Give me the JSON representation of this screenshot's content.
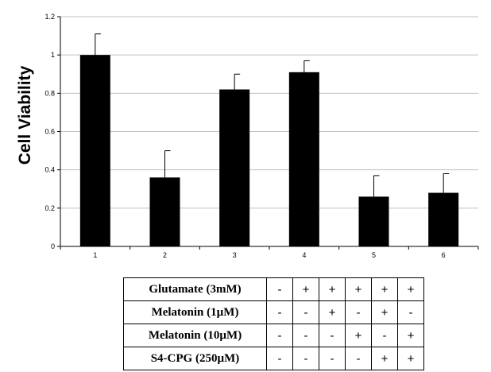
{
  "chart_data": {
    "type": "bar",
    "categories": [
      "1",
      "2",
      "3",
      "4",
      "5",
      "6"
    ],
    "values": [
      1.0,
      0.36,
      0.82,
      0.91,
      0.26,
      0.28
    ],
    "errors": [
      0.11,
      0.14,
      0.08,
      0.06,
      0.11,
      0.1
    ],
    "ylabel": "Cell Viability",
    "ylim": [
      0,
      1.2
    ],
    "yticks": [
      "0",
      "0.2",
      "0.4",
      "0.6",
      "0.8",
      "1",
      "1.2"
    ],
    "grid": true,
    "bar_color": "#000000",
    "grid_color": "#c0c0c0"
  },
  "conditions": [
    {
      "label": "Glutamate (3mM)",
      "values": [
        "-",
        "+",
        "+",
        "+",
        "+",
        "+"
      ]
    },
    {
      "label": "Melatonin (1µM)",
      "values": [
        "-",
        "-",
        "+",
        "-",
        "+",
        "-"
      ]
    },
    {
      "label": "Melatonin  (10µM)",
      "values": [
        "-",
        "-",
        "-",
        "+",
        "-",
        "+"
      ]
    },
    {
      "label": "S4-CPG (250µM)",
      "values": [
        "-",
        "-",
        "-",
        "-",
        "+",
        "+"
      ]
    }
  ]
}
